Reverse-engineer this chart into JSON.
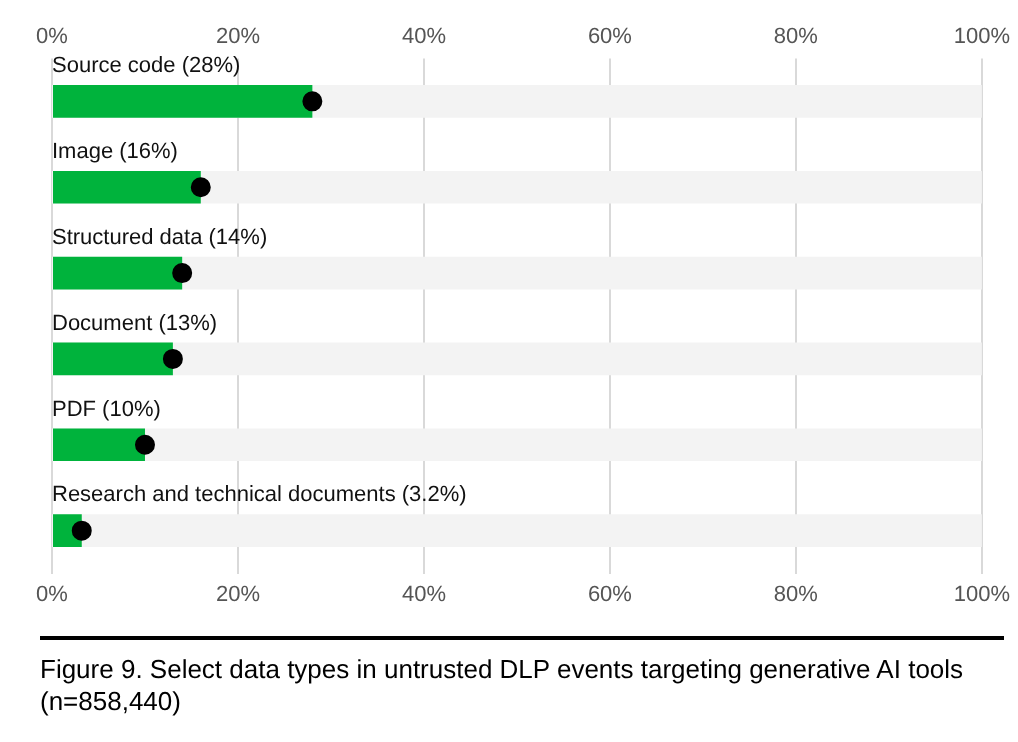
{
  "chart_data": {
    "type": "bar",
    "orientation": "horizontal",
    "title": "Figure 9. Select data types in untrusted DLP events targeting generative AI tools (n=858,440)",
    "categories": [
      "Source code (28%)",
      "Image (16%)",
      "Structured data (14%)",
      "Document (13%)",
      "PDF (10%)",
      "Research and technical documents (3.2%)"
    ],
    "series": [
      {
        "color": "#00b33c",
        "values": [
          28,
          16,
          14,
          13,
          10,
          3.2
        ]
      },
      {
        "type": "scatter",
        "color": "#000000",
        "x": [
          "Source code (28%)",
          "Image (16%)",
          "Structured data (14%)",
          "Document (13%)",
          "PDF (10%)",
          "Research and technical documents (3.2%)"
        ],
        "values": [
          28,
          16,
          14,
          13,
          10,
          3.2
        ]
      }
    ],
    "xlim": [
      0,
      100
    ],
    "xticks": [
      {
        "value": 0,
        "label": "0%"
      },
      {
        "value": 20,
        "label": "20%"
      },
      {
        "value": 40,
        "label": "40%"
      },
      {
        "value": 60,
        "label": "60%"
      },
      {
        "value": 80,
        "label": "80%"
      },
      {
        "value": 100,
        "label": "100%"
      }
    ],
    "x2lim": [
      0,
      100
    ],
    "x2ticks": [
      {
        "value": 0,
        "label": "0%"
      },
      {
        "value": 20,
        "label": "20%"
      },
      {
        "value": 40,
        "label": "40%"
      },
      {
        "value": 60,
        "label": "60%"
      },
      {
        "value": 80,
        "label": "80%"
      },
      {
        "value": 100,
        "label": "100%"
      }
    ],
    "grid": "x",
    "legend": false,
    "marker": "circle"
  }
}
